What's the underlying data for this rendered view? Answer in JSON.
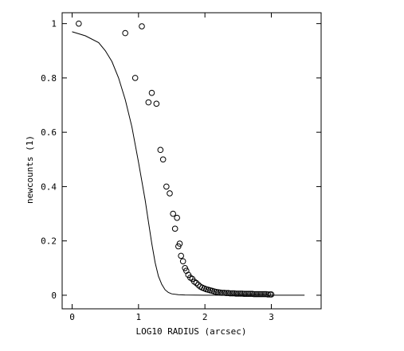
{
  "chart_data": {
    "type": "scatter",
    "title": "",
    "xlabel": "LOG10 RADIUS (arcsec)",
    "ylabel": "newcounts (1)",
    "xlim": [
      -0.15,
      3.75
    ],
    "ylim": [
      -0.05,
      1.04
    ],
    "x_ticks": [
      0,
      1,
      2,
      3
    ],
    "x_tick_labels": [
      "0",
      "1",
      "2",
      "3"
    ],
    "y_ticks": [
      0,
      0.2,
      0.4,
      0.6,
      0.8,
      1
    ],
    "y_tick_labels": [
      "0",
      "0.2",
      "0.4",
      "0.6",
      "0.8",
      "1"
    ],
    "grid": false,
    "series": [
      {
        "kind": "points",
        "marker": "open-circle",
        "x": [
          0.1,
          0.8,
          0.95,
          1.05,
          1.15,
          1.2,
          1.27,
          1.33,
          1.37,
          1.42,
          1.47,
          1.52,
          1.55,
          1.58,
          1.6,
          1.62,
          1.64,
          1.67,
          1.7,
          1.72,
          1.75,
          1.78,
          1.81,
          1.84,
          1.87,
          1.9,
          1.93,
          1.96,
          1.99,
          2.02,
          2.05,
          2.08,
          2.11,
          2.14,
          2.17,
          2.2,
          2.23,
          2.26,
          2.29,
          2.32,
          2.35,
          2.38,
          2.41,
          2.44,
          2.47,
          2.5,
          2.53,
          2.56,
          2.59,
          2.62,
          2.65,
          2.68,
          2.71,
          2.74,
          2.77,
          2.8,
          2.83,
          2.86,
          2.89,
          2.92,
          2.95,
          2.98,
          3.0
        ],
        "y": [
          1.0,
          0.965,
          0.8,
          0.99,
          0.71,
          0.745,
          0.705,
          0.535,
          0.5,
          0.4,
          0.375,
          0.3,
          0.245,
          0.285,
          0.18,
          0.19,
          0.145,
          0.125,
          0.1,
          0.09,
          0.075,
          0.065,
          0.06,
          0.05,
          0.045,
          0.038,
          0.032,
          0.028,
          0.025,
          0.022,
          0.02,
          0.018,
          0.016,
          0.014,
          0.012,
          0.011,
          0.01,
          0.009,
          0.009,
          0.008,
          0.008,
          0.007,
          0.007,
          0.007,
          0.006,
          0.006,
          0.006,
          0.006,
          0.005,
          0.005,
          0.005,
          0.005,
          0.005,
          0.004,
          0.004,
          0.004,
          0.004,
          0.004,
          0.004,
          0.004,
          0.003,
          0.003,
          0.003
        ]
      },
      {
        "kind": "line",
        "x": [
          0.0,
          0.2,
          0.4,
          0.5,
          0.6,
          0.7,
          0.8,
          0.9,
          1.0,
          1.05,
          1.1,
          1.15,
          1.2,
          1.25,
          1.3,
          1.35,
          1.4,
          1.45,
          1.5,
          1.6,
          1.7,
          2.0,
          2.5,
          3.0,
          3.5
        ],
        "y": [
          0.97,
          0.955,
          0.93,
          0.9,
          0.86,
          0.8,
          0.72,
          0.62,
          0.49,
          0.42,
          0.35,
          0.27,
          0.19,
          0.12,
          0.07,
          0.04,
          0.02,
          0.01,
          0.005,
          0.002,
          0.001,
          0.0,
          0.0,
          0.0,
          0.0
        ]
      }
    ]
  }
}
